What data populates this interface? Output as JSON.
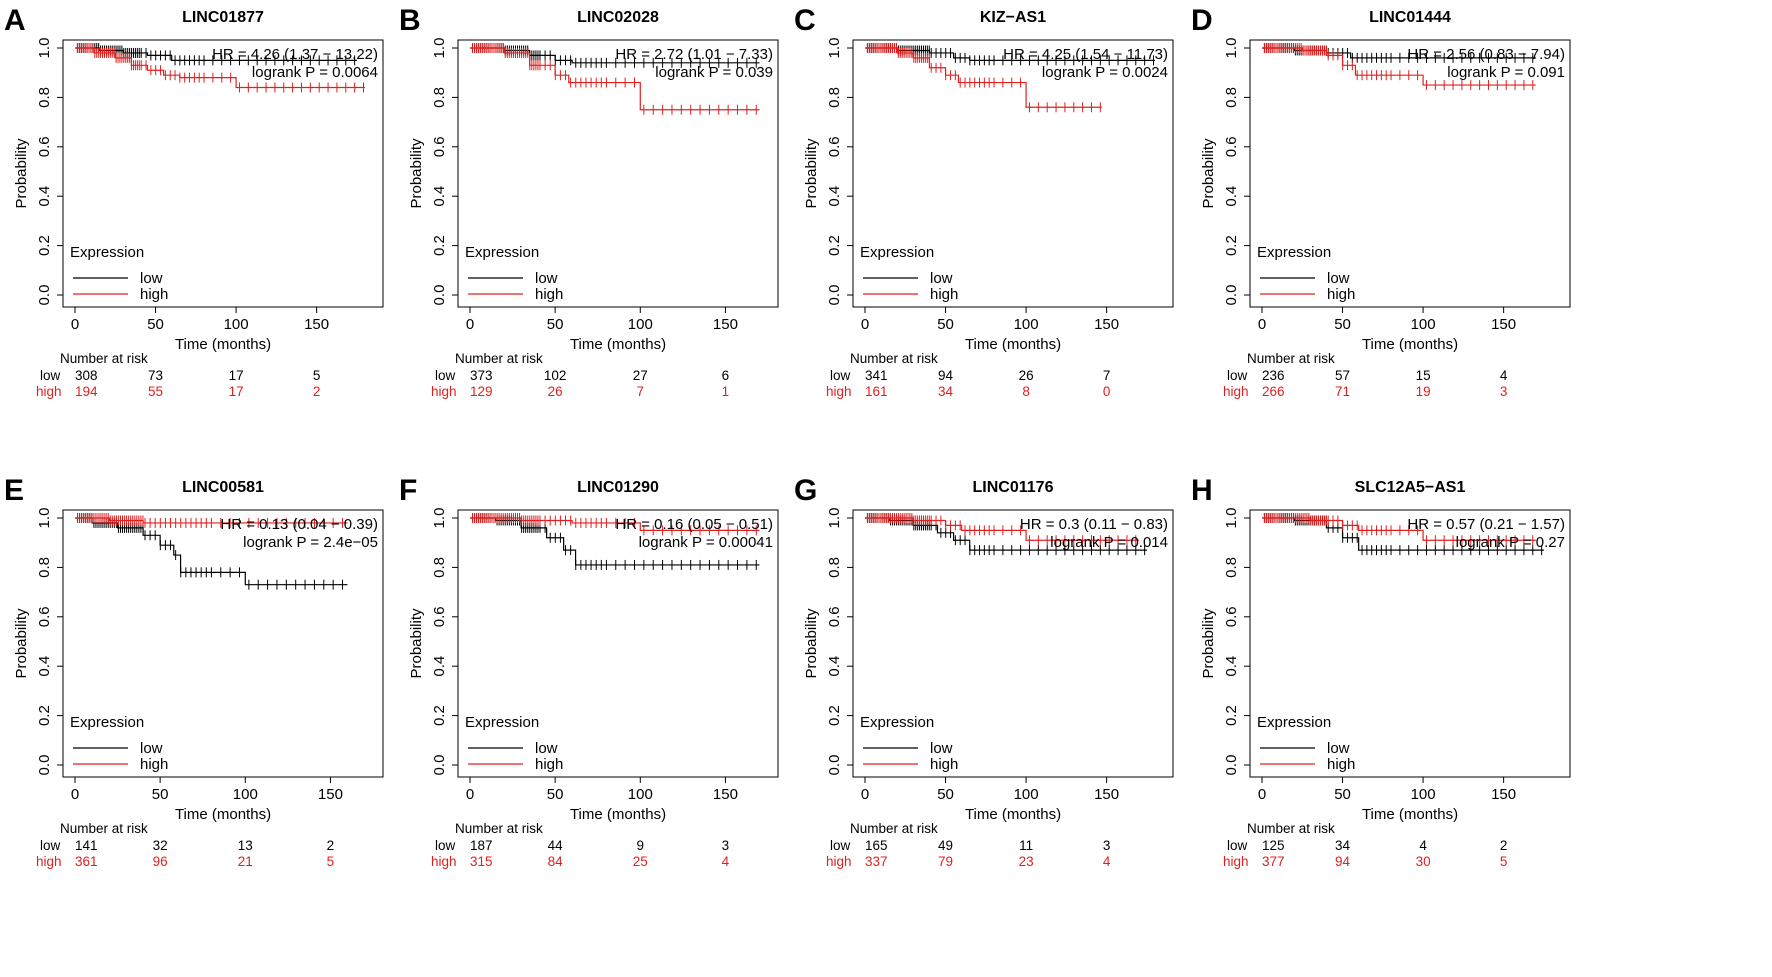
{
  "colors": {
    "low": "#000000",
    "high": "#e02020"
  },
  "chart_data": [
    {
      "type": "line",
      "panel": "A",
      "title": "LINC01877",
      "xlabel": "Time (months)",
      "ylabel": "Probability",
      "xlim": [
        0,
        185
      ],
      "ylim": [
        0,
        1.0
      ],
      "xticks": [
        0,
        50,
        100,
        150
      ],
      "yticks": [
        0.0,
        0.2,
        0.4,
        0.6,
        0.8,
        1.0
      ],
      "stats": {
        "hr": "HR = 4.26 (1.37 − 13.22)",
        "p": "logrank P = 0.0064"
      },
      "legend": {
        "title": "Expression",
        "low": "low",
        "high": "high"
      },
      "risk_table": {
        "header": "Number at risk",
        "times": [
          0,
          50,
          100,
          150
        ],
        "low": {
          "label": "low",
          "values": [
            308,
            73,
            17,
            5
          ]
        },
        "high": {
          "label": "high",
          "values": [
            194,
            55,
            17,
            2
          ]
        }
      },
      "series": [
        {
          "name": "low",
          "x": [
            0,
            15,
            30,
            45,
            60,
            100,
            175
          ],
          "y": [
            1.0,
            0.99,
            0.98,
            0.97,
            0.95,
            0.95,
            0.95
          ],
          "xmax": 175
        },
        {
          "name": "high",
          "x": [
            0,
            12,
            25,
            35,
            45,
            55,
            65,
            100,
            180
          ],
          "y": [
            1.0,
            0.98,
            0.96,
            0.93,
            0.91,
            0.89,
            0.88,
            0.84,
            0.84
          ],
          "xmax": 180
        }
      ]
    },
    {
      "type": "line",
      "panel": "B",
      "title": "LINC02028",
      "xlabel": "Time (months)",
      "ylabel": "Probability",
      "xlim": [
        0,
        175
      ],
      "ylim": [
        0,
        1.0
      ],
      "xticks": [
        0,
        50,
        100,
        150
      ],
      "yticks": [
        0.0,
        0.2,
        0.4,
        0.6,
        0.8,
        1.0
      ],
      "stats": {
        "hr": "HR = 2.72 (1.01 − 7.33)",
        "p": "logrank P = 0.039"
      },
      "legend": {
        "title": "Expression",
        "low": "low",
        "high": "high"
      },
      "risk_table": {
        "header": "Number at risk",
        "times": [
          0,
          50,
          100,
          150
        ],
        "low": {
          "label": "low",
          "values": [
            373,
            102,
            27,
            6
          ]
        },
        "high": {
          "label": "high",
          "values": [
            129,
            26,
            7,
            1
          ]
        }
      },
      "series": [
        {
          "name": "low",
          "x": [
            0,
            20,
            35,
            50,
            60,
            100,
            170
          ],
          "y": [
            1.0,
            0.99,
            0.97,
            0.95,
            0.94,
            0.94,
            0.94
          ],
          "xmax": 170
        },
        {
          "name": "high",
          "x": [
            0,
            20,
            35,
            50,
            58,
            100,
            170
          ],
          "y": [
            1.0,
            0.98,
            0.93,
            0.89,
            0.86,
            0.75,
            0.75
          ],
          "xmax": 170
        }
      ]
    },
    {
      "type": "line",
      "panel": "C",
      "title": "KIZ−AS1",
      "xlabel": "Time (months)",
      "ylabel": "Probability",
      "xlim": [
        0,
        185
      ],
      "ylim": [
        0,
        1.0
      ],
      "xticks": [
        0,
        50,
        100,
        150
      ],
      "yticks": [
        0.0,
        0.2,
        0.4,
        0.6,
        0.8,
        1.0
      ],
      "stats": {
        "hr": "HR = 4.25 (1.54 − 11.73)",
        "p": "logrank P = 0.0024"
      },
      "legend": {
        "title": "Expression",
        "low": "low",
        "high": "high"
      },
      "risk_table": {
        "header": "Number at risk",
        "times": [
          0,
          50,
          100,
          150
        ],
        "low": {
          "label": "low",
          "values": [
            341,
            94,
            26,
            7
          ]
        },
        "high": {
          "label": "high",
          "values": [
            161,
            34,
            8,
            0
          ]
        }
      },
      "series": [
        {
          "name": "low",
          "x": [
            0,
            20,
            40,
            55,
            65,
            180
          ],
          "y": [
            1.0,
            0.99,
            0.98,
            0.96,
            0.95,
            0.95
          ],
          "xmax": 180
        },
        {
          "name": "high",
          "x": [
            0,
            20,
            30,
            40,
            50,
            58,
            100,
            147
          ],
          "y": [
            1.0,
            0.98,
            0.96,
            0.92,
            0.89,
            0.86,
            0.76,
            0.76
          ],
          "xmax": 147
        }
      ]
    },
    {
      "type": "line",
      "panel": "D",
      "title": "LINC01444",
      "xlabel": "Time (months)",
      "ylabel": "Probability",
      "xlim": [
        0,
        185
      ],
      "ylim": [
        0,
        1.0
      ],
      "xticks": [
        0,
        50,
        100,
        150
      ],
      "yticks": [
        0.0,
        0.2,
        0.4,
        0.6,
        0.8,
        1.0
      ],
      "stats": {
        "hr": "HR = 2.56 (0.83 − 7.94)",
        "p": "logrank P = 0.091"
      },
      "legend": {
        "title": "Expression",
        "low": "low",
        "high": "high"
      },
      "risk_table": {
        "header": "Number at risk",
        "times": [
          0,
          50,
          100,
          150
        ],
        "low": {
          "label": "low",
          "values": [
            236,
            57,
            15,
            4
          ]
        },
        "high": {
          "label": "high",
          "values": [
            266,
            71,
            19,
            3
          ]
        }
      },
      "series": [
        {
          "name": "low",
          "x": [
            0,
            20,
            40,
            55,
            170
          ],
          "y": [
            1.0,
            0.99,
            0.98,
            0.96,
            0.96
          ],
          "xmax": 170
        },
        {
          "name": "high",
          "x": [
            0,
            25,
            40,
            50,
            58,
            100,
            170
          ],
          "y": [
            1.0,
            0.99,
            0.97,
            0.93,
            0.89,
            0.85,
            0.85
          ],
          "xmax": 170
        }
      ]
    },
    {
      "type": "line",
      "panel": "E",
      "title": "LINC00581",
      "xlabel": "Time (months)",
      "ylabel": "Probability",
      "xlim": [
        0,
        175
      ],
      "ylim": [
        0,
        1.0
      ],
      "xticks": [
        0,
        50,
        100,
        150
      ],
      "yticks": [
        0.0,
        0.2,
        0.4,
        0.6,
        0.8,
        1.0
      ],
      "stats": {
        "hr": "HR = 0.13 (0.04 − 0.39)",
        "p": "logrank P = 2.4e−05"
      },
      "legend": {
        "title": "Expression",
        "low": "low",
        "high": "high"
      },
      "risk_table": {
        "header": "Number at risk",
        "times": [
          0,
          50,
          100,
          150
        ],
        "low": {
          "label": "low",
          "values": [
            141,
            32,
            13,
            2
          ]
        },
        "high": {
          "label": "high",
          "values": [
            361,
            96,
            21,
            5
          ]
        }
      },
      "series": [
        {
          "name": "low",
          "x": [
            0,
            10,
            25,
            40,
            50,
            58,
            62,
            100,
            160
          ],
          "y": [
            1.0,
            0.98,
            0.96,
            0.93,
            0.89,
            0.85,
            0.78,
            0.73,
            0.73
          ],
          "xmax": 160
        },
        {
          "name": "high",
          "x": [
            0,
            20,
            40,
            160
          ],
          "y": [
            1.0,
            0.99,
            0.98,
            0.98
          ],
          "xmax": 160
        }
      ]
    },
    {
      "type": "line",
      "panel": "F",
      "title": "LINC01290",
      "xlabel": "Time (months)",
      "ylabel": "Probability",
      "xlim": [
        0,
        175
      ],
      "ylim": [
        0,
        1.0
      ],
      "xticks": [
        0,
        50,
        100,
        150
      ],
      "yticks": [
        0.0,
        0.2,
        0.4,
        0.6,
        0.8,
        1.0
      ],
      "stats": {
        "hr": "HR = 0.16 (0.05 − 0.51)",
        "p": "logrank P = 0.00041"
      },
      "legend": {
        "title": "Expression",
        "low": "low",
        "high": "high"
      },
      "risk_table": {
        "header": "Number at risk",
        "times": [
          0,
          50,
          100,
          150
        ],
        "low": {
          "label": "low",
          "values": [
            187,
            44,
            9,
            3
          ]
        },
        "high": {
          "label": "high",
          "values": [
            315,
            84,
            25,
            4
          ]
        }
      },
      "series": [
        {
          "name": "low",
          "x": [
            0,
            15,
            30,
            45,
            55,
            62,
            170
          ],
          "y": [
            1.0,
            0.99,
            0.96,
            0.92,
            0.87,
            0.81,
            0.81
          ],
          "xmax": 170
        },
        {
          "name": "high",
          "x": [
            0,
            30,
            60,
            100,
            170
          ],
          "y": [
            1.0,
            0.99,
            0.98,
            0.95,
            0.95
          ],
          "xmax": 170
        }
      ]
    },
    {
      "type": "line",
      "panel": "G",
      "title": "LINC01176",
      "xlabel": "Time (months)",
      "ylabel": "Probability",
      "xlim": [
        0,
        185
      ],
      "ylim": [
        0,
        1.0
      ],
      "xticks": [
        0,
        50,
        100,
        150
      ],
      "yticks": [
        0.0,
        0.2,
        0.4,
        0.6,
        0.8,
        1.0
      ],
      "stats": {
        "hr": "HR = 0.3 (0.11 − 0.83)",
        "p": "logrank P = 0.014"
      },
      "legend": {
        "title": "Expression",
        "low": "low",
        "high": "high"
      },
      "risk_table": {
        "header": "Number at risk",
        "times": [
          0,
          50,
          100,
          150
        ],
        "low": {
          "label": "low",
          "values": [
            165,
            49,
            11,
            3
          ]
        },
        "high": {
          "label": "high",
          "values": [
            337,
            79,
            23,
            4
          ]
        }
      },
      "series": [
        {
          "name": "low",
          "x": [
            0,
            15,
            30,
            45,
            55,
            65,
            175
          ],
          "y": [
            1.0,
            0.99,
            0.97,
            0.94,
            0.91,
            0.87,
            0.87
          ],
          "xmax": 175
        },
        {
          "name": "high",
          "x": [
            0,
            30,
            50,
            60,
            100,
            170
          ],
          "y": [
            1.0,
            0.99,
            0.97,
            0.95,
            0.91,
            0.91
          ],
          "xmax": 170
        }
      ]
    },
    {
      "type": "line",
      "panel": "H",
      "title": "SLC12A5−AS1",
      "xlabel": "Time (months)",
      "ylabel": "Probability",
      "xlim": [
        0,
        185
      ],
      "ylim": [
        0,
        1.0
      ],
      "xticks": [
        0,
        50,
        100,
        150
      ],
      "yticks": [
        0.0,
        0.2,
        0.4,
        0.6,
        0.8,
        1.0
      ],
      "stats": {
        "hr": "HR = 0.57 (0.21 − 1.57)",
        "p": "logrank P = 0.27"
      },
      "legend": {
        "title": "Expression",
        "low": "low",
        "high": "high"
      },
      "risk_table": {
        "header": "Number at risk",
        "times": [
          0,
          50,
          100,
          150
        ],
        "low": {
          "label": "low",
          "values": [
            125,
            34,
            4,
            2
          ]
        },
        "high": {
          "label": "high",
          "values": [
            377,
            94,
            30,
            5
          ]
        }
      },
      "series": [
        {
          "name": "low",
          "x": [
            0,
            20,
            40,
            50,
            60,
            175
          ],
          "y": [
            1.0,
            0.99,
            0.96,
            0.92,
            0.87,
            0.87
          ],
          "xmax": 175
        },
        {
          "name": "high",
          "x": [
            0,
            30,
            50,
            60,
            100,
            170
          ],
          "y": [
            1.0,
            0.99,
            0.97,
            0.95,
            0.91,
            0.91
          ],
          "xmax": 170
        }
      ]
    }
  ]
}
